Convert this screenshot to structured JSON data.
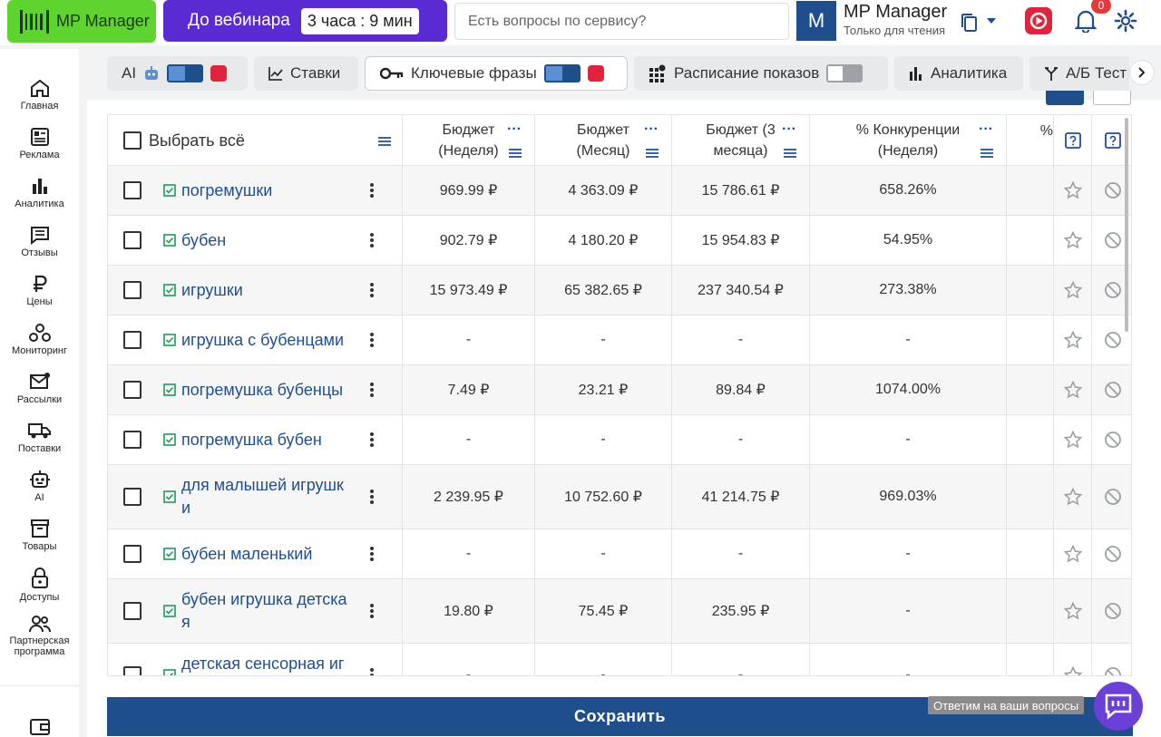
{
  "header": {
    "logo_text": "MP Manager",
    "webinar_label": "До вебинара",
    "webinar_timer": "3 часа : 9 мин",
    "search_placeholder": "Есть вопросы по сервису?",
    "avatar_letter": "M",
    "user_name": "MP Manager",
    "user_role": "Только для чтения",
    "notifications_count": "0"
  },
  "sidebar": {
    "items": [
      {
        "label": "Главная",
        "icon": "home-icon"
      },
      {
        "label": "Реклама",
        "icon": "ads-icon"
      },
      {
        "label": "Аналитика",
        "icon": "analytics-icon"
      },
      {
        "label": "Отзывы",
        "icon": "reviews-icon"
      },
      {
        "label": "Цены",
        "icon": "ruble-icon"
      },
      {
        "label": "Мониторинг",
        "icon": "monitoring-icon"
      },
      {
        "label": "Рассылки",
        "icon": "mail-icon"
      },
      {
        "label": "Поставки",
        "icon": "truck-icon"
      },
      {
        "label": "AI",
        "icon": "robot-icon"
      },
      {
        "label": "Товары",
        "icon": "box-icon"
      },
      {
        "label": "Доступы",
        "icon": "lock-icon"
      },
      {
        "label": "Партнерская программа",
        "icon": "partners-icon"
      }
    ]
  },
  "tabs": [
    {
      "label": "AI"
    },
    {
      "label": "Ставки"
    },
    {
      "label": "Ключевые фразы"
    },
    {
      "label": "Расписание показов"
    },
    {
      "label": "Аналитика"
    },
    {
      "label": "А/Б Тест"
    }
  ],
  "table": {
    "select_all": "Выбрать всё",
    "col1": "Бюджет (Неделя)",
    "col2": "Бюджет (Месяц)",
    "col3": "Бюджет (3 месяца)",
    "col4": "% Конкуренции (Неделя)",
    "col5": "%",
    "rows": [
      {
        "kw": "погремушки",
        "w": "969.99 ₽",
        "m": "4 363.09 ₽",
        "q": "15 786.61 ₽",
        "c": "658.26%"
      },
      {
        "kw": "бубен",
        "w": "902.79 ₽",
        "m": "4 180.20 ₽",
        "q": "15 954.83 ₽",
        "c": "54.95%"
      },
      {
        "kw": "игрушки",
        "w": "15 973.49 ₽",
        "m": "65 382.65 ₽",
        "q": "237 340.54 ₽",
        "c": "273.38%"
      },
      {
        "kw": "игрушка с бубенцами",
        "w": "-",
        "m": "-",
        "q": "-",
        "c": "-"
      },
      {
        "kw": "погремушка бубенцы",
        "w": "7.49 ₽",
        "m": "23.21 ₽",
        "q": "89.84 ₽",
        "c": "1074.00%"
      },
      {
        "kw": "погремушка бубен",
        "w": "-",
        "m": "-",
        "q": "-",
        "c": "-"
      },
      {
        "kw": "для малышей игрушк\nи",
        "w": "2 239.95 ₽",
        "m": "10 752.60 ₽",
        "q": "41 214.75 ₽",
        "c": "969.03%"
      },
      {
        "kw": "бубен маленький",
        "w": "-",
        "m": "-",
        "q": "-",
        "c": "-"
      },
      {
        "kw": "бубен игрушка детска\nя",
        "w": "19.80 ₽",
        "m": "75.45 ₽",
        "q": "235.95 ₽",
        "c": "-"
      },
      {
        "kw": "детская сенсорная иг\nрушка",
        "w": "-",
        "m": "-",
        "q": "-",
        "c": "-"
      }
    ]
  },
  "footer": {
    "save_label": "Сохранить",
    "help_tip": "Ответим на ваши вопросы"
  },
  "colors": {
    "accent": "#1f4e8c",
    "logo_green": "#5ed52e",
    "webinar_purple": "#5a2bd3",
    "badge_red": "#e23b3b"
  }
}
